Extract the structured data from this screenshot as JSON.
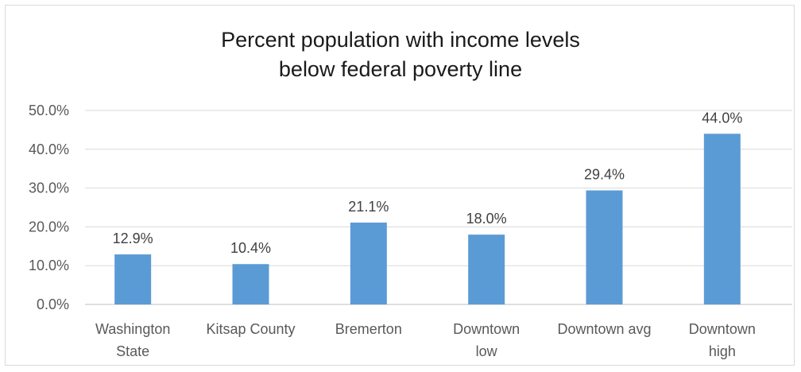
{
  "chart_data": {
    "type": "bar",
    "title_lines": [
      "Percent population with income levels",
      "below federal poverty line"
    ],
    "categories": [
      [
        "Washington",
        "State"
      ],
      [
        "Kitsap County"
      ],
      [
        "Bremerton"
      ],
      [
        "Downtown",
        "low"
      ],
      [
        "Downtown avg"
      ],
      [
        "Downtown",
        "high"
      ]
    ],
    "values": [
      12.9,
      10.4,
      21.1,
      18.0,
      29.4,
      44.0
    ],
    "data_labels": [
      "12.9%",
      "10.4%",
      "21.1%",
      "18.0%",
      "29.4%",
      "44.0%"
    ],
    "y_ticks": [
      "0.0%",
      "10.0%",
      "20.0%",
      "30.0%",
      "40.0%",
      "50.0%"
    ],
    "ylim": [
      0,
      50
    ],
    "grid": true,
    "legend": "none",
    "bar_color": "#5b9bd5"
  }
}
